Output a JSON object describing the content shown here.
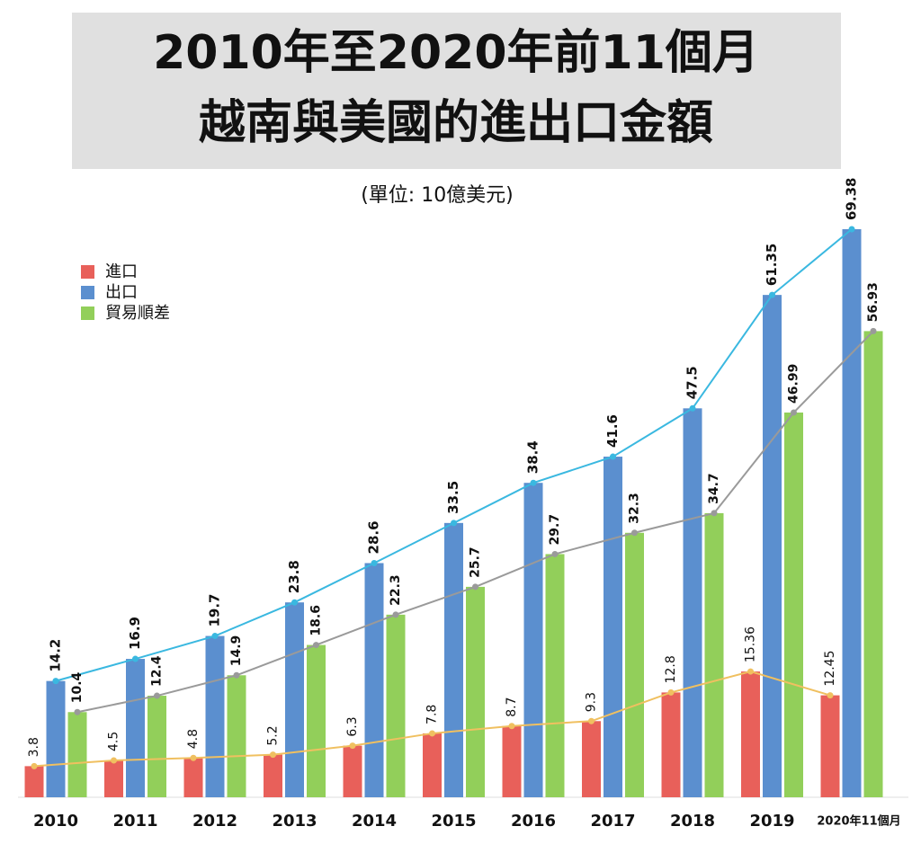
{
  "chart_data": {
    "type": "bar",
    "title": [
      "2010年至2020年前11個月",
      "越南與美國的進出口金額"
    ],
    "subtitle": "(單位: 10億美元)",
    "categories": [
      "2010",
      "2011",
      "2012",
      "2013",
      "2014",
      "2015",
      "2016",
      "2017",
      "2018",
      "2019",
      "2020年11個月"
    ],
    "series": [
      {
        "name": "進口",
        "color": "#e8605a",
        "line_color": "#f0c060",
        "values": [
          3.8,
          4.5,
          4.8,
          5.2,
          6.3,
          7.8,
          8.7,
          9.3,
          12.8,
          15.36,
          12.45
        ]
      },
      {
        "name": "出口",
        "color": "#5b8fcf",
        "line_color": "#3ab8e0",
        "values": [
          14.2,
          16.9,
          19.7,
          23.8,
          28.6,
          33.5,
          38.4,
          41.6,
          47.5,
          61.35,
          69.38
        ]
      },
      {
        "name": "貿易順差",
        "color": "#92cf5a",
        "line_color": "#9a9a9a",
        "values": [
          10.4,
          12.4,
          14.9,
          18.6,
          22.3,
          25.7,
          29.7,
          32.3,
          34.7,
          46.99,
          56.93
        ]
      }
    ]
  }
}
